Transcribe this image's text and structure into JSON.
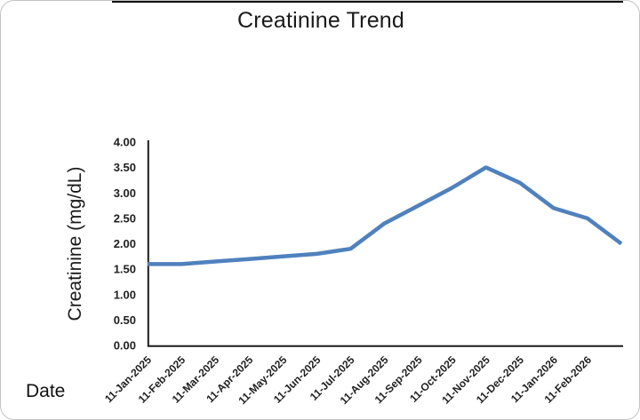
{
  "chart": {
    "title": "Creatinine Trend",
    "x_axis_title": "Date",
    "y_axis_title": "Creatinine (mg/dL)"
  },
  "chart_data": {
    "type": "line",
    "title": "Creatinine Trend",
    "xlabel": "Date",
    "ylabel": "Creatinine (mg/dL)",
    "x_tick_labels": [
      "11-Jan-2025",
      "11-Feb-2025",
      "11-Mar-2025",
      "11-Apr-2025",
      "11-May-2025",
      "11-Jun-2025",
      "11-Jul-2025",
      "11-Aug-2025",
      "11-Sep-2025",
      "11-Oct-2025",
      "11-Nov-2025",
      "11-Dec-2025",
      "11-Jan-2026",
      "11-Feb-2026"
    ],
    "values": [
      1.6,
      1.6,
      1.65,
      1.7,
      1.75,
      1.8,
      1.9,
      2.4,
      2.75,
      3.1,
      3.5,
      3.2,
      2.7,
      2.5,
      2.0
    ],
    "note": "line extends one unlabeled data point past 11-Feb-2026 to the plot right edge",
    "y_tick_labels": [
      "0.00",
      "0.50",
      "1.00",
      "1.50",
      "2.00",
      "2.50",
      "3.00",
      "3.50",
      "4.00"
    ],
    "ylim": [
      0,
      4
    ],
    "grid": false,
    "legend": false,
    "line_color": "#4f81bd",
    "axis_color": "#1a1a1a",
    "tick_label_color": "#1f1f1f"
  }
}
